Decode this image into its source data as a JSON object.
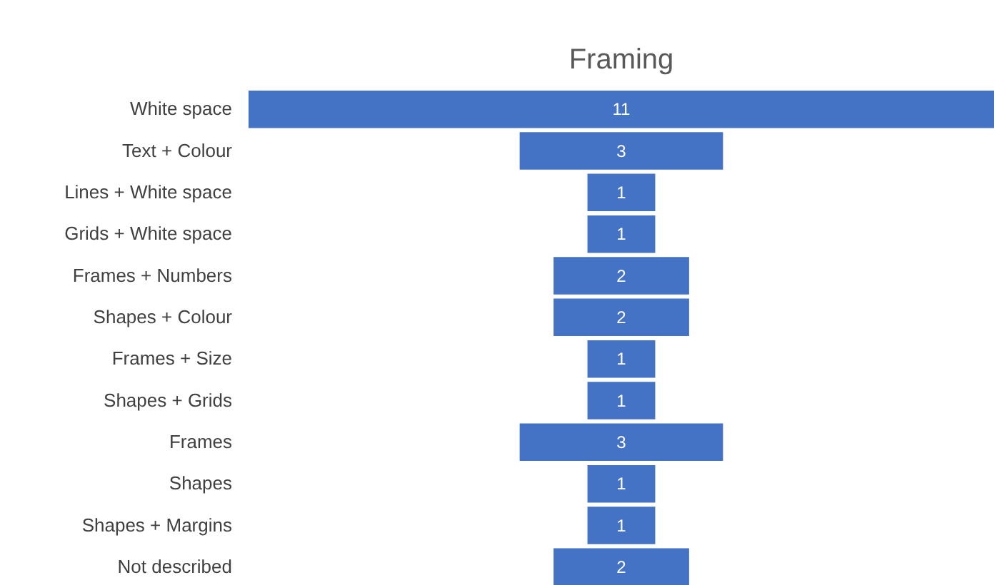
{
  "chart_data": {
    "type": "other",
    "title": "Framing",
    "categories": [
      "White space",
      "Text + Colour",
      "Lines + White space",
      "Grids + White space",
      "Frames + Numbers",
      "Shapes + Colour",
      "Frames + Size",
      "Shapes + Grids",
      "Frames",
      "Shapes",
      "Shapes + Margins",
      "Not described"
    ],
    "values": [
      11,
      3,
      1,
      1,
      2,
      2,
      1,
      1,
      3,
      1,
      1,
      2
    ],
    "color": "#4472c4",
    "data_labels": true
  }
}
